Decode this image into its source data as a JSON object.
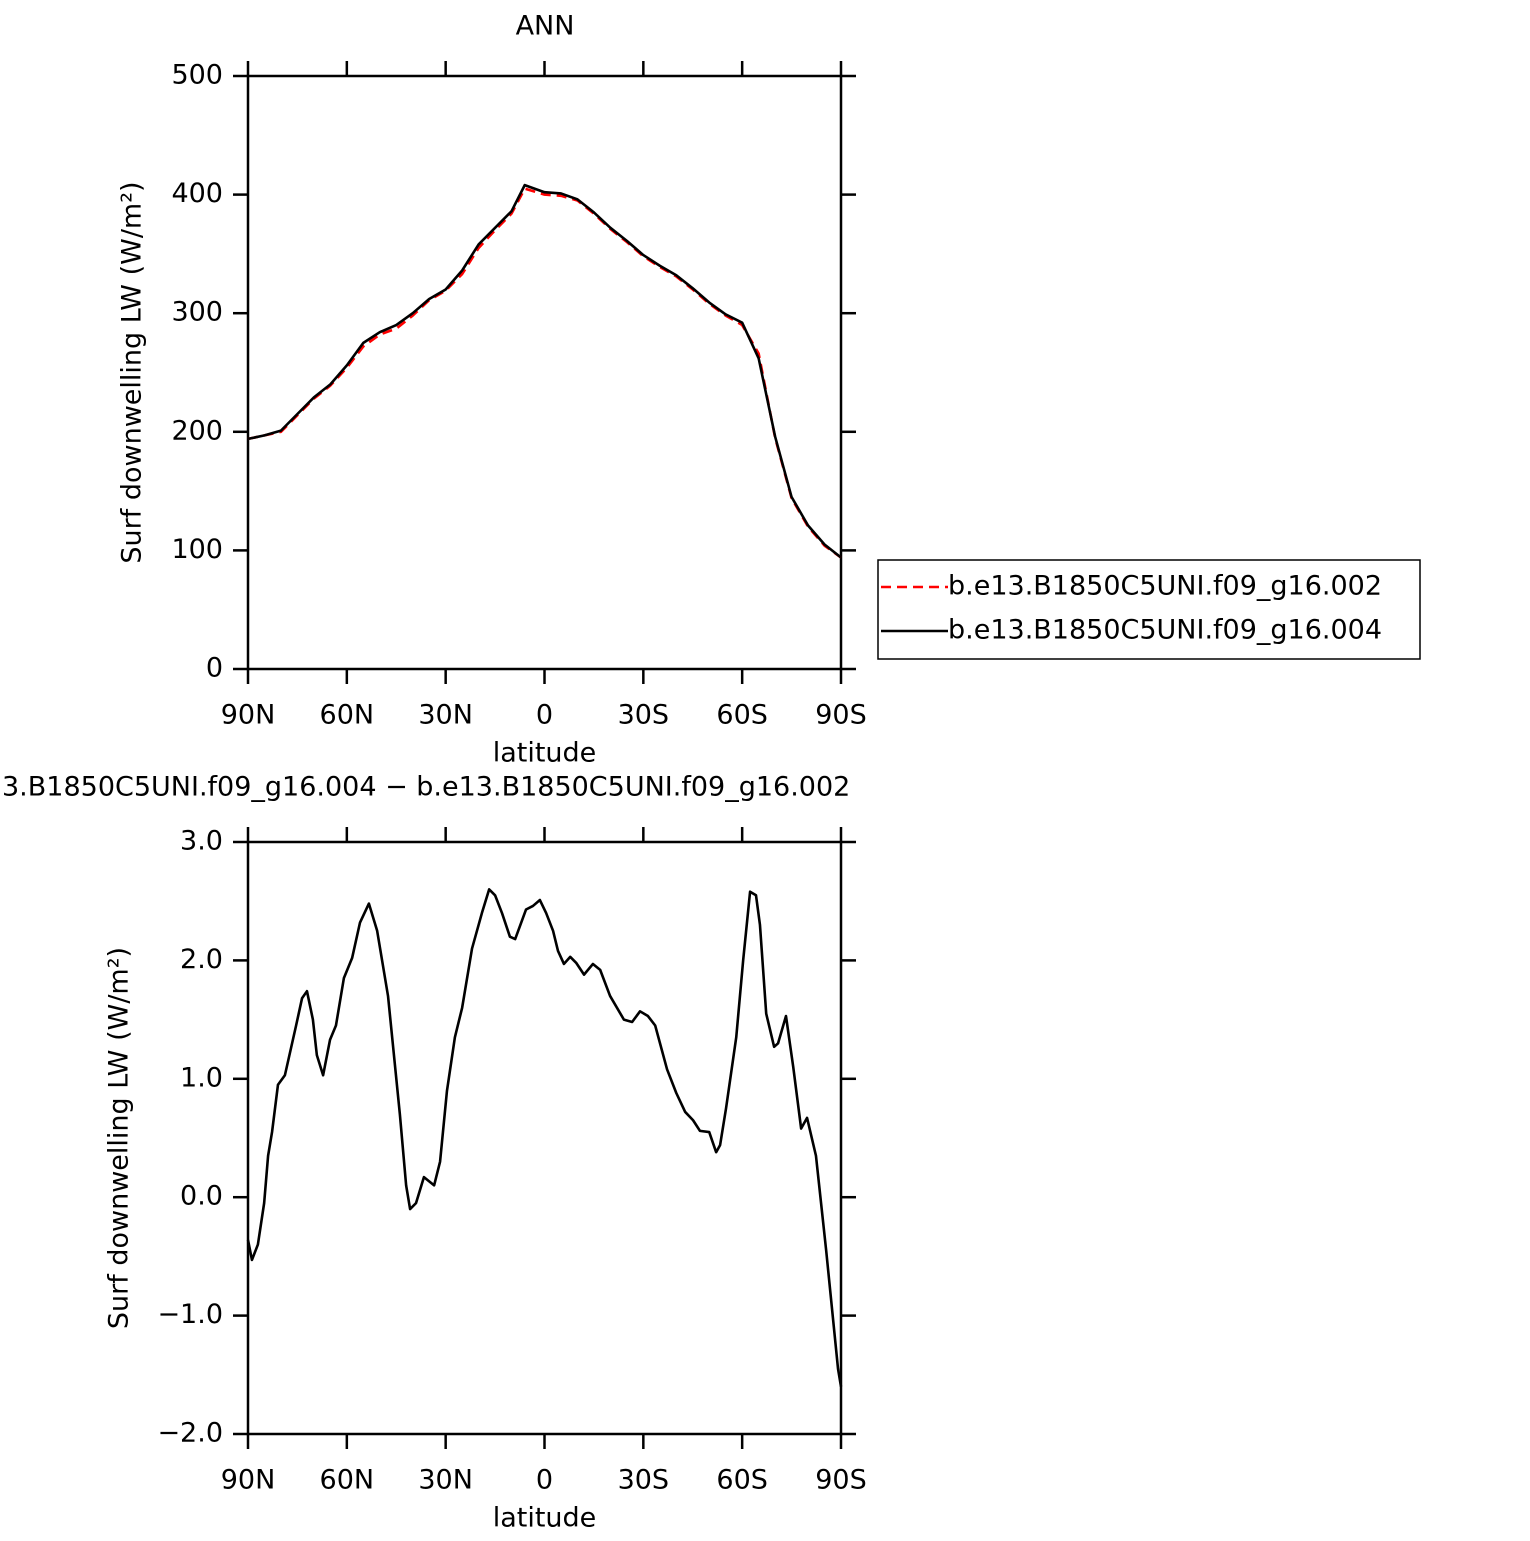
{
  "chart_data": [
    {
      "type": "line",
      "title": "ANN",
      "xlabel": "latitude",
      "ylabel": "Surf downwelling LW (W/m²)",
      "x": [
        90,
        85,
        80,
        75,
        70,
        65,
        60,
        55,
        50,
        45,
        40,
        35,
        30,
        25,
        20,
        15,
        10,
        6,
        0,
        -5,
        -10,
        -15,
        -20,
        -25,
        -30,
        -35,
        -40,
        -45,
        -50,
        -55,
        -60,
        -65,
        -70,
        -75,
        -80,
        -85,
        -90
      ],
      "series": [
        {
          "name": "b.e13.B1850C5UNI.f09_g16.002",
          "color": "#ff0000",
          "dash": true,
          "values": [
            194,
            197,
            200,
            214,
            228,
            239,
            254,
            272,
            282,
            287,
            298,
            311,
            319,
            333,
            355,
            370,
            384,
            405,
            400,
            399,
            395,
            384,
            371,
            360,
            348,
            339,
            331,
            320,
            308,
            298,
            290,
            266,
            195,
            144,
            120,
            104,
            94
          ]
        },
        {
          "name": "b.e13.B1850C5UNI.f09_g16.004",
          "color": "#000000",
          "dash": false,
          "values": [
            194,
            197,
            201,
            215,
            229,
            240,
            256,
            275,
            284,
            290,
            300,
            312,
            320,
            336,
            358,
            372,
            386,
            408,
            402,
            401,
            396,
            385,
            372,
            361,
            349,
            340,
            332,
            321,
            309,
            299,
            292,
            262,
            196,
            145,
            121,
            105,
            94
          ]
        }
      ],
      "xlim": [
        90,
        -90
      ],
      "xticks": [
        {
          "value": 90,
          "label": "90N"
        },
        {
          "value": 60,
          "label": "60N"
        },
        {
          "value": 30,
          "label": "30N"
        },
        0,
        {
          "value": -30,
          "label": "30S"
        },
        {
          "value": -60,
          "label": "60S"
        },
        {
          "value": -90,
          "label": "90S"
        }
      ],
      "ylim": [
        0,
        500
      ],
      "yticks": [
        0,
        100,
        200,
        300,
        400,
        500
      ]
    },
    {
      "type": "line",
      "title": "3.B1850C5UNI.f09_g16.004 − b.e13.B1850C5UNI.f09_g16.002",
      "xlabel": "latitude",
      "ylabel": "Surf downwelling LW (W/m²)",
      "x": [
        90,
        88.8,
        87,
        85.1,
        83.9,
        82.7,
        80.9,
        78.8,
        75.4,
        73.6,
        72.1,
        70.3,
        69.1,
        67.2,
        65.1,
        63.3,
        60.9,
        58.4,
        56.0,
        53.3,
        50.8,
        47.5,
        43.9,
        42.0,
        40.8,
        39.0,
        36.6,
        33.5,
        31.7,
        29.6,
        27.2,
        25.0,
        22.0,
        19.0,
        16.8,
        15.0,
        12.9,
        10.5,
        8.9,
        5.6,
        3.5,
        1.4,
        -0.5,
        -2.6,
        -4.1,
        -5.9,
        -7.8,
        -9.6,
        -12.0,
        -14.7,
        -16.9,
        -19.9,
        -24.1,
        -26.6,
        -29.0,
        -31.4,
        -33.6,
        -37.2,
        -40.0,
        -42.7,
        -45.1,
        -47.2,
        -50.0,
        -52.1,
        -53.3,
        -55.1,
        -58.2,
        -60.3,
        -62.4,
        -64.2,
        -65.4,
        -67.3,
        -69.7,
        -70.9,
        -73.3,
        -75.5,
        -77.9,
        -79.7,
        -82.4,
        -85.5,
        -89.1,
        -90
      ],
      "values": [
        -0.36,
        -0.53,
        -0.4,
        -0.05,
        0.35,
        0.55,
        0.95,
        1.03,
        1.45,
        1.68,
        1.74,
        1.5,
        1.2,
        1.03,
        1.33,
        1.45,
        1.85,
        2.02,
        2.32,
        2.48,
        2.25,
        1.7,
        0.7,
        0.1,
        -0.1,
        -0.05,
        0.17,
        0.1,
        0.3,
        0.9,
        1.35,
        1.6,
        2.1,
        2.4,
        2.6,
        2.55,
        2.4,
        2.2,
        2.18,
        2.43,
        2.46,
        2.51,
        2.4,
        2.25,
        2.08,
        1.97,
        2.03,
        1.98,
        1.88,
        1.97,
        1.92,
        1.7,
        1.5,
        1.48,
        1.57,
        1.53,
        1.45,
        1.08,
        0.88,
        0.72,
        0.65,
        0.56,
        0.55,
        0.38,
        0.44,
        0.75,
        1.35,
        2.0,
        2.58,
        2.55,
        2.3,
        1.55,
        1.27,
        1.3,
        1.53,
        1.1,
        0.58,
        0.67,
        0.35,
        -0.45,
        -1.45,
        -1.6
      ],
      "color": "#000000",
      "xlim": [
        90,
        -90
      ],
      "xticks": [
        {
          "value": 90,
          "label": "90N"
        },
        {
          "value": 60,
          "label": "60N"
        },
        {
          "value": 30,
          "label": "30N"
        },
        0,
        {
          "value": -30,
          "label": "30S"
        },
        {
          "value": -60,
          "label": "60S"
        },
        {
          "value": -90,
          "label": "90S"
        }
      ],
      "ylim": [
        -2,
        3
      ],
      "yticks": [
        {
          "value": -2,
          "label": "−2.0"
        },
        {
          "value": -1,
          "label": "−1.0"
        },
        {
          "value": 0,
          "label": "0.0"
        },
        {
          "value": 1,
          "label": "1.0"
        },
        {
          "value": 2,
          "label": "2.0"
        },
        {
          "value": 3,
          "label": "3.0"
        }
      ]
    }
  ]
}
